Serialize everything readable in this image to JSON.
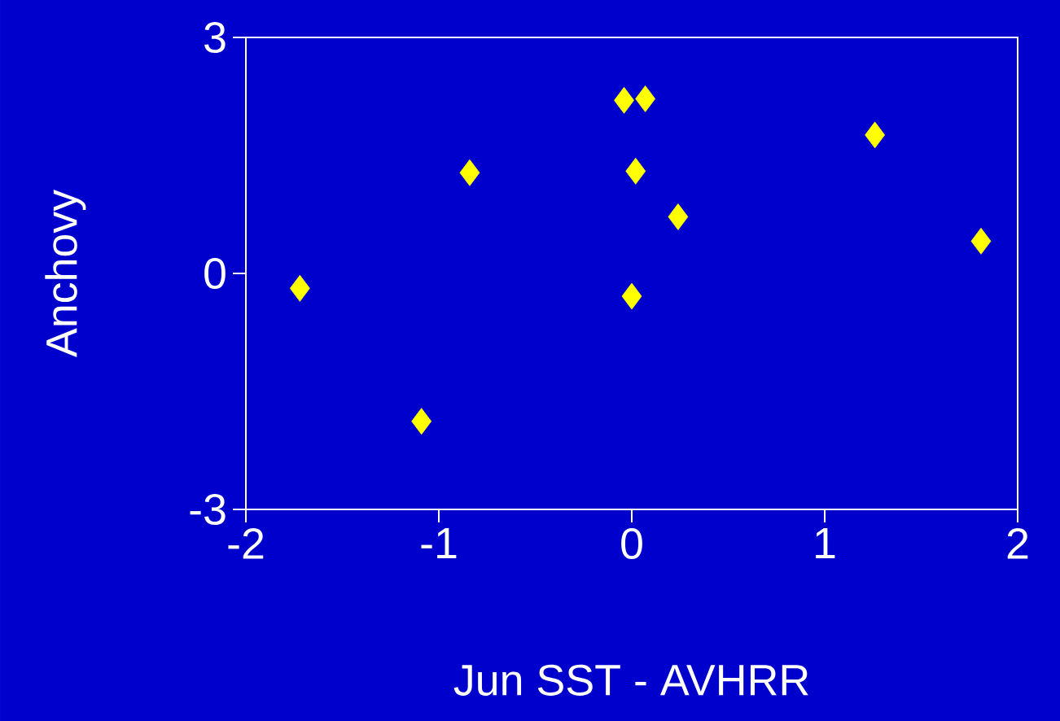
{
  "chart_data": {
    "type": "scatter",
    "xlabel": "Jun SST - AVHRR",
    "ylabel": "Anchovy",
    "x": [
      -1.72,
      -1.09,
      -0.84,
      -0.04,
      0.07,
      0.02,
      0.0,
      0.24,
      1.26,
      1.81
    ],
    "series": [
      {
        "color": "#ffff00",
        "values": [
          -0.19,
          -1.88,
          1.28,
          2.2,
          2.22,
          1.3,
          -0.29,
          0.72,
          1.76,
          0.41
        ]
      }
    ],
    "xlim": [
      -2,
      2
    ],
    "ylim": [
      -3,
      3
    ],
    "xticks": [
      -2,
      -1,
      0,
      1,
      2
    ],
    "yticks": [
      -3,
      0,
      3
    ],
    "marker": "diamond",
    "grid": false
  }
}
